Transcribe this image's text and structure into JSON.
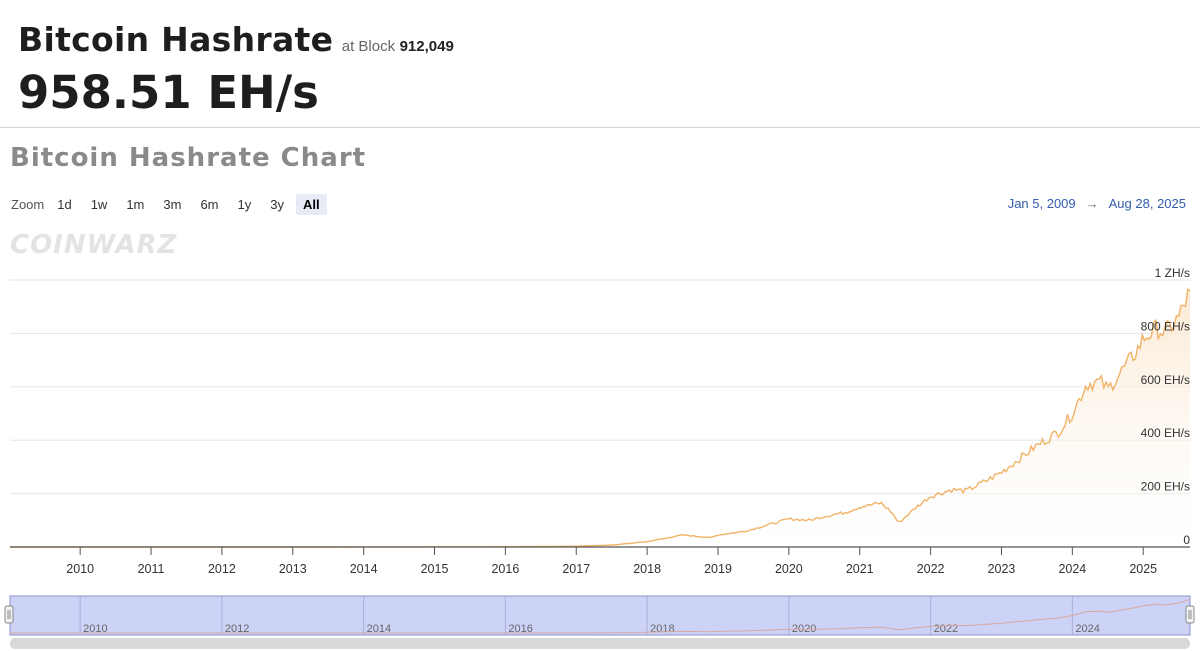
{
  "header": {
    "title": "Bitcoin Hashrate",
    "at_block_label": "at Block",
    "block_number": "912,049",
    "current_value": "958.51 EH/s"
  },
  "chart_section": {
    "title": "Bitcoin Hashrate Chart",
    "zoom_label": "Zoom",
    "zoom_buttons": [
      "1d",
      "1w",
      "1m",
      "3m",
      "6m",
      "1y",
      "3y",
      "All"
    ],
    "active_zoom": "All",
    "range_start": "Jan 5, 2009",
    "range_arrow": "→",
    "range_end": "Aug 28, 2025",
    "watermark": "COINWARZ"
  },
  "colors": {
    "line": "#f0b366",
    "area_top": "#fbe7cf",
    "navigator_fill": "#cdd3f7",
    "navigator_border": "#8891c9",
    "grid": "#e6e6e6"
  },
  "chart_data": {
    "type": "area",
    "title": "Bitcoin Hashrate Chart",
    "x_unit": "year",
    "xlim": [
      2009.01,
      2025.66
    ],
    "ylim": [
      0,
      1000
    ],
    "y_unit": "EH/s",
    "y_ticks": [
      {
        "value": 0,
        "label": "0"
      },
      {
        "value": 200,
        "label": "200 EH/s"
      },
      {
        "value": 400,
        "label": "400 EH/s"
      },
      {
        "value": 600,
        "label": "600 EH/s"
      },
      {
        "value": 800,
        "label": "800 EH/s"
      },
      {
        "value": 1000,
        "label": "1 ZH/s"
      }
    ],
    "x_ticks": [
      {
        "value": 2010,
        "label": "2010"
      },
      {
        "value": 2011,
        "label": "2011"
      },
      {
        "value": 2012,
        "label": "2012"
      },
      {
        "value": 2013,
        "label": "2013"
      },
      {
        "value": 2014,
        "label": "2014"
      },
      {
        "value": 2015,
        "label": "2015"
      },
      {
        "value": 2016,
        "label": "2016"
      },
      {
        "value": 2017,
        "label": "2017"
      },
      {
        "value": 2018,
        "label": "2018"
      },
      {
        "value": 2019,
        "label": "2019"
      },
      {
        "value": 2020,
        "label": "2020"
      },
      {
        "value": 2021,
        "label": "2021"
      },
      {
        "value": 2022,
        "label": "2022"
      },
      {
        "value": 2023,
        "label": "2023"
      },
      {
        "value": 2024,
        "label": "2024"
      },
      {
        "value": 2025,
        "label": "2025"
      }
    ],
    "navigator_ticks": [
      {
        "value": 2010,
        "label": "2010"
      },
      {
        "value": 2012,
        "label": "2012"
      },
      {
        "value": 2014,
        "label": "2014"
      },
      {
        "value": 2016,
        "label": "2016"
      },
      {
        "value": 2018,
        "label": "2018"
      },
      {
        "value": 2020,
        "label": "2020"
      },
      {
        "value": 2022,
        "label": "2022"
      },
      {
        "value": 2024,
        "label": "2024"
      }
    ],
    "grid": true,
    "legend": "none",
    "series": [
      {
        "x": [
          2009.01,
          2014.0,
          2016.0,
          2017.0,
          2017.5,
          2018.0,
          2018.5,
          2018.9,
          2019.0,
          2019.4,
          2019.8,
          2020.0,
          2020.3,
          2020.5,
          2020.8,
          2021.0,
          2021.3,
          2021.45,
          2021.55,
          2021.8,
          2022.0,
          2022.3,
          2022.5,
          2022.8,
          2023.0,
          2023.3,
          2023.5,
          2023.8,
          2024.0,
          2024.2,
          2024.4,
          2024.5,
          2024.7,
          2024.9,
          2025.0,
          2025.2,
          2025.3,
          2025.5,
          2025.66
        ],
        "values": [
          0,
          0.2,
          1,
          3,
          7,
          20,
          45,
          35,
          45,
          60,
          90,
          105,
          100,
          115,
          130,
          150,
          165,
          130,
          90,
          150,
          190,
          215,
          210,
          250,
          280,
          340,
          380,
          430,
          500,
          610,
          620,
          590,
          660,
          730,
          780,
          820,
          800,
          860,
          958.51
        ]
      }
    ]
  }
}
